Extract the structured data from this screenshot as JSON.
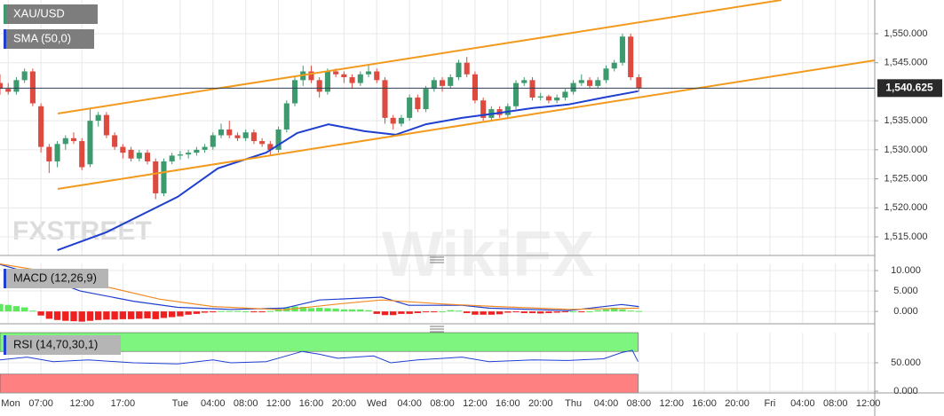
{
  "watermarks": [
    "FXSTREET",
    "WikiFX"
  ],
  "chart_data": [
    {
      "type": "candlestick",
      "title": "XAU/USD",
      "up_color": "#3c9a6e",
      "down_color": "#dc4a40",
      "x": [
        2,
        3,
        4,
        5,
        6,
        7,
        8,
        9,
        10,
        11,
        12,
        13,
        14,
        15,
        16,
        17,
        18,
        19,
        20,
        21,
        22,
        23,
        24,
        25,
        26,
        27,
        28,
        29,
        30,
        31,
        32,
        33,
        34,
        35,
        36,
        37,
        38,
        39,
        40,
        41,
        42,
        43,
        44,
        45,
        46,
        47,
        48,
        49,
        50,
        51,
        52,
        53,
        54,
        55,
        56,
        57,
        58,
        59,
        60,
        61,
        62,
        63,
        64,
        65,
        66,
        67,
        68,
        69,
        70,
        71,
        72,
        73,
        74,
        75,
        76,
        77,
        78,
        79,
        80
      ],
      "open": [
        1541.5,
        1540.5,
        1540,
        1542,
        1543.5,
        1537.5,
        1530.5,
        1528,
        1531,
        1532,
        1531.5,
        1527.5,
        1535,
        1536,
        1532.5,
        1530.5,
        1530,
        1528.5,
        1529.5,
        1528,
        1522.5,
        1528,
        1529,
        1529.2,
        1529.5,
        1530,
        1530.5,
        1532.5,
        1533.5,
        1532.5,
        1532,
        1533,
        1531.5,
        1531,
        1530,
        1533.5,
        1538,
        1542,
        1543.5,
        1542,
        1540,
        1543.5,
        1543,
        1542.5,
        1541.5,
        1543,
        1543.5,
        1542,
        1535.5,
        1534.5,
        1535.5,
        1539,
        1537,
        1540.5,
        1542,
        1541,
        1542.5,
        1545,
        1543,
        1538.5,
        1535.5,
        1537,
        1536,
        1537.5,
        1541.5,
        1542,
        1539,
        1539.2,
        1538.5,
        1539,
        1540,
        1541.5,
        1542,
        1541,
        1542,
        1544,
        1545,
        1549.5,
        1542.5
      ],
      "high": [
        1543,
        1541.5,
        1542.5,
        1544,
        1544,
        1538,
        1531,
        1531.5,
        1532.5,
        1533,
        1532,
        1537,
        1536.5,
        1536.5,
        1533,
        1531,
        1530.5,
        1530,
        1530,
        1528.5,
        1528.5,
        1529.5,
        1529.8,
        1530,
        1530.5,
        1531,
        1533,
        1534.5,
        1535,
        1533,
        1533.5,
        1533.5,
        1532,
        1531.5,
        1534,
        1538.5,
        1542.5,
        1544.5,
        1544.5,
        1542.5,
        1544,
        1544,
        1543.5,
        1543,
        1543.5,
        1544.5,
        1544,
        1542.5,
        1536,
        1536,
        1539.5,
        1539.5,
        1541,
        1542.5,
        1542.5,
        1543,
        1545.5,
        1546,
        1543.5,
        1539,
        1537.5,
        1537.5,
        1538,
        1542,
        1542.5,
        1542.5,
        1539.8,
        1539.5,
        1539.5,
        1540.5,
        1542,
        1543,
        1542.5,
        1542.5,
        1544.5,
        1545.5,
        1550,
        1550,
        1543
      ],
      "low": [
        1539.5,
        1539.5,
        1539.5,
        1541.5,
        1537.5,
        1529.5,
        1526,
        1527,
        1530,
        1531,
        1526.5,
        1527,
        1534,
        1532,
        1530,
        1528.5,
        1528,
        1528,
        1527.5,
        1521.5,
        1522,
        1527.5,
        1528.3,
        1528.5,
        1529,
        1529.5,
        1530,
        1532,
        1532,
        1531.5,
        1531.5,
        1531,
        1530.5,
        1529,
        1529.5,
        1533,
        1537.5,
        1541,
        1541.5,
        1539,
        1539.5,
        1542.5,
        1541.5,
        1540.5,
        1541,
        1542.5,
        1541.5,
        1534.5,
        1533.5,
        1534,
        1535,
        1536.5,
        1536.5,
        1540,
        1540,
        1540.5,
        1542,
        1542.5,
        1538,
        1535,
        1535,
        1535.5,
        1535.5,
        1537,
        1541,
        1538.5,
        1538.5,
        1538,
        1538,
        1538.5,
        1539.5,
        1541,
        1540.5,
        1540.5,
        1541.5,
        1543.5,
        1544.5,
        1542,
        1540
      ],
      "close": [
        1540.5,
        1540,
        1542,
        1543.5,
        1538,
        1530.5,
        1528,
        1531,
        1532,
        1531.5,
        1527,
        1535,
        1536,
        1532.5,
        1530.5,
        1529.5,
        1528.5,
        1529.5,
        1528,
        1522.5,
        1528,
        1529,
        1529.2,
        1529.5,
        1530,
        1530.5,
        1532.5,
        1533.5,
        1532.5,
        1532,
        1533,
        1531.5,
        1531,
        1530,
        1533.5,
        1538,
        1542,
        1543.5,
        1542,
        1540,
        1543.5,
        1543,
        1542.5,
        1541.5,
        1543,
        1543.5,
        1542,
        1535.5,
        1534.5,
        1535.5,
        1539,
        1537,
        1540.5,
        1542,
        1541,
        1542.5,
        1545,
        1543,
        1538.5,
        1535.5,
        1537,
        1536,
        1537.5,
        1541.5,
        1542,
        1539,
        1539.2,
        1538.5,
        1539,
        1540,
        1541.5,
        1542,
        1541,
        1542,
        1544,
        1545,
        1549.5,
        1542.5,
        1540.625
      ],
      "last_value_label": "1,540.625",
      "overlays": [
        {
          "name": "SMA (50,0)",
          "color": "#1f3fd0",
          "x": [
            9,
            15,
            23.7,
            28.6,
            34.5,
            38.3,
            42.1,
            46.5,
            50.3,
            54,
            58.4,
            62.7,
            67.1,
            71.4,
            75.7,
            79.9
          ],
          "values": [
            1512.7,
            1515.8,
            1521.9,
            1526.8,
            1529.5,
            1532.9,
            1534.4,
            1533.2,
            1532.6,
            1534.4,
            1535.5,
            1536.3,
            1537.2,
            1537.8,
            1539,
            1540.1
          ]
        }
      ],
      "xlim": [
        2,
        108.8
      ],
      "xticks": [
        {
          "value": 3,
          "label": "Mon"
        },
        {
          "value": 7,
          "label": "07:00"
        },
        {
          "value": 12,
          "label": "12:00"
        },
        {
          "value": 17,
          "label": "17:00"
        },
        {
          "value": 24,
          "label": "Tue"
        },
        {
          "value": 28,
          "label": "04:00"
        },
        {
          "value": 32,
          "label": "08:00"
        },
        {
          "value": 36,
          "label": "12:00"
        },
        {
          "value": 40,
          "label": "16:00"
        },
        {
          "value": 44,
          "label": "20:00"
        },
        {
          "value": 48,
          "label": "Wed"
        },
        {
          "value": 52,
          "label": "04:00"
        },
        {
          "value": 56,
          "label": "08:00"
        },
        {
          "value": 60,
          "label": "12:00"
        },
        {
          "value": 64,
          "label": "16:00"
        },
        {
          "value": 68,
          "label": "20:00"
        },
        {
          "value": 72,
          "label": "Thu"
        },
        {
          "value": 76,
          "label": "04:00"
        },
        {
          "value": 80,
          "label": "08:00"
        },
        {
          "value": 84,
          "label": "12:00"
        },
        {
          "value": 88,
          "label": "16:00"
        },
        {
          "value": 92,
          "label": "20:00"
        },
        {
          "value": 96,
          "label": "Fri"
        },
        {
          "value": 100,
          "label": "04:00"
        },
        {
          "value": 104,
          "label": "08:00"
        },
        {
          "value": 108,
          "label": "12:00"
        }
      ],
      "ylim": [
        1511.8,
        1555.8
      ],
      "yticks": [
        {
          "value": 1515,
          "label": "1,515.000"
        },
        {
          "value": 1520,
          "label": "1,520.000"
        },
        {
          "value": 1525,
          "label": "1,525.000"
        },
        {
          "value": 1530,
          "label": "1,530.000"
        },
        {
          "value": 1535,
          "label": "1,535.000"
        },
        {
          "value": 1545,
          "label": "1,545.000"
        },
        {
          "value": 1550,
          "label": "1,550.000"
        }
      ]
    },
    {
      "type": "macd",
      "title": "MACD (12,26,9)",
      "up_color": "#5de85d",
      "down_color": "#ee2020",
      "histogram": [
        1.8,
        1.6,
        1.3,
        1.0,
        0.2,
        -1.0,
        -1.8,
        -2.1,
        -2.3,
        -2.4,
        -2.5,
        -2.3,
        -2.1,
        -2.0,
        -2.0,
        -1.9,
        -1.9,
        -1.8,
        -1.7,
        -1.9,
        -1.6,
        -1.4,
        -1.2,
        -0.8,
        -0.6,
        -0.3,
        -0.1,
        0.1,
        0.1,
        0.1,
        0.0,
        -0.1,
        -0.2,
        0.1,
        0.6,
        1.0,
        1.2,
        1.1,
        0.8,
        0.9,
        0.8,
        0.7,
        0.5,
        0.5,
        0.5,
        0.3,
        -0.6,
        -0.9,
        -0.9,
        -0.6,
        -0.6,
        -0.4,
        -0.2,
        -0.1,
        0.0,
        0.3,
        0.2,
        -0.4,
        -0.8,
        -0.8,
        -0.8,
        -0.7,
        -0.3,
        -0.2,
        -0.4,
        -0.4,
        -0.5,
        -0.4,
        -0.3,
        -0.1,
        0.0,
        -0.1,
        0.0,
        0.3,
        0.5,
        0.9,
        0.5,
        0.2,
        0.1
      ],
      "lines": [
        {
          "color": "#1f3fd0",
          "x": [
            2,
            6.3,
            11.8,
            18.3,
            23.7,
            30.2,
            36.7,
            41,
            48.6,
            51.9,
            58.4,
            61.7,
            71.4,
            77.9,
            80
          ],
          "values": [
            11.5,
            9,
            5,
            2.5,
            1,
            0.5,
            0.8,
            2.8,
            3.5,
            1.5,
            1.5,
            0.8,
            0.2,
            1.7,
            1.2
          ]
        },
        {
          "color": "#f08a24",
          "x": [
            2,
            8.5,
            15,
            21.5,
            28,
            36.7,
            43.2,
            48.6,
            56.2,
            62.7,
            71.4,
            80
          ],
          "values": [
            11.6,
            9.5,
            6,
            3,
            1.2,
            0.4,
            1.8,
            2.8,
            1.8,
            1.2,
            0.5,
            0.8
          ]
        }
      ],
      "ylim": [
        -2.8,
        11.74
      ],
      "yticks": [
        {
          "value": 0,
          "label": "0.000"
        },
        {
          "value": 5,
          "label": "5.000"
        },
        {
          "value": 10,
          "label": "10.000"
        }
      ]
    },
    {
      "type": "rsi",
      "title": "RSI (14,70,30,1)",
      "color": "#1f3fd0",
      "overbought": 70,
      "oversold": 30,
      "overbought_color": "#7ef57e",
      "oversold_color": "#ff8080",
      "x": [
        2,
        5.3,
        8.5,
        12.8,
        18.3,
        23.7,
        28,
        30.2,
        34.5,
        38.9,
        41,
        43.2,
        47.6,
        49.7,
        53,
        58.4,
        61.7,
        67.1,
        71.4,
        75.7,
        77.9,
        79.2,
        79.9
      ],
      "values": [
        55,
        60,
        52,
        55,
        50,
        48,
        55,
        50,
        52,
        70,
        65,
        58,
        62,
        50,
        55,
        60,
        52,
        55,
        54,
        57,
        68,
        72,
        52
      ],
      "ylim": [
        -3,
        103
      ],
      "yticks": [
        {
          "value": 0,
          "label": "0.000"
        },
        {
          "value": 50,
          "label": "50.000"
        }
      ]
    }
  ]
}
